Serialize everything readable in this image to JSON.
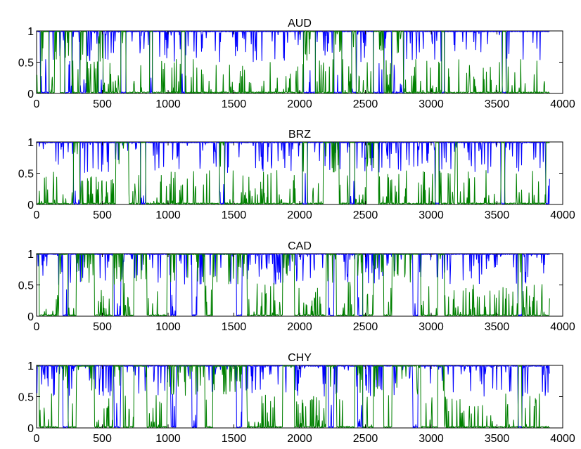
{
  "chart_data": [
    {
      "type": "line",
      "title": "AUD",
      "xlabel": "",
      "ylabel": "",
      "xlim": [
        0,
        4000
      ],
      "ylim": [
        0,
        1
      ],
      "grid": false,
      "xticks": [
        "0",
        "500",
        "1000",
        "1500",
        "2000",
        "2500",
        "3000",
        "3500",
        "4000"
      ],
      "yticks": [
        "0",
        "0.5",
        "1"
      ],
      "x_end": 3900,
      "series": [
        {
          "color": "#0000ff",
          "low": [
            [
              30,
              95
            ],
            [
              215,
              270
            ],
            [
              330,
              380
            ],
            [
              470,
              505
            ],
            [
              640,
              680
            ],
            [
              860,
              880
            ],
            [
              1100,
              1130
            ],
            [
              2030,
              2120
            ],
            [
              2260,
              2320
            ],
            [
              2395,
              2430
            ],
            [
              2560,
              2640
            ],
            [
              2700,
              2790
            ],
            [
              3080,
              3100
            ],
            [
              3540,
              3570
            ]
          ]
        },
        {
          "color": "#008000",
          "low": [
            [
              0,
              30
            ],
            [
              95,
              135
            ],
            [
              180,
              215
            ],
            [
              270,
              330
            ],
            [
              380,
              470
            ],
            [
              505,
              640
            ],
            [
              680,
              860
            ],
            [
              880,
              1100
            ],
            [
              1130,
              1290
            ],
            [
              1290,
              2030
            ],
            [
              2120,
              2260
            ],
            [
              2320,
              2395
            ],
            [
              2430,
              2560
            ],
            [
              2640,
              2700
            ],
            [
              2790,
              3080
            ],
            [
              3100,
              3540
            ],
            [
              3570,
              3900
            ]
          ]
        }
      ]
    },
    {
      "type": "line",
      "title": "BRZ",
      "xlabel": "",
      "ylabel": "",
      "xlim": [
        0,
        4000
      ],
      "ylim": [
        0,
        1
      ],
      "grid": false,
      "xticks": [
        "0",
        "500",
        "1000",
        "1500",
        "2000",
        "2500",
        "3000",
        "3500",
        "4000"
      ],
      "yticks": [
        "0",
        "0.5",
        "1"
      ],
      "x_end": 3900,
      "series": [
        {
          "color": "#0000ff",
          "low": [
            [
              280,
              330
            ],
            [
              790,
              830
            ],
            [
              1390,
              1430
            ],
            [
              2020,
              2060
            ],
            [
              2380,
              2420
            ],
            [
              3030,
              3060
            ],
            [
              3530,
              3560
            ],
            [
              3870,
              3900
            ]
          ]
        },
        {
          "color": "#008000",
          "low": [
            [
              0,
              280
            ],
            [
              330,
              600
            ],
            [
              700,
              790
            ],
            [
              830,
              1140
            ],
            [
              1140,
              1390
            ],
            [
              1430,
              1560
            ],
            [
              1560,
              2020
            ],
            [
              2060,
              2180
            ],
            [
              2300,
              2380
            ],
            [
              2420,
              2510
            ],
            [
              2600,
              3030
            ],
            [
              3060,
              3180
            ],
            [
              3200,
              3530
            ],
            [
              3560,
              3870
            ]
          ]
        }
      ]
    },
    {
      "type": "line",
      "title": "CAD",
      "xlabel": "",
      "ylabel": "",
      "xlim": [
        0,
        4000
      ],
      "ylim": [
        0,
        1
      ],
      "grid": false,
      "xticks": [
        "0",
        "500",
        "1000",
        "1500",
        "2000",
        "2500",
        "3000",
        "3500",
        "4000"
      ],
      "yticks": [
        "0",
        "0.5",
        "1"
      ],
      "x_end": 3900,
      "series": [
        {
          "color": "#0000ff",
          "low": [
            [
              200,
              240
            ],
            [
              590,
              640
            ],
            [
              1020,
              1060
            ],
            [
              1180,
              1220
            ],
            [
              1520,
              1560
            ],
            [
              2220,
              2260
            ],
            [
              2440,
              2480
            ],
            [
              2860,
              2900
            ],
            [
              3660,
              3690
            ]
          ]
        },
        {
          "color": "#008000",
          "low": [
            [
              20,
              170
            ],
            [
              240,
              300
            ],
            [
              440,
              580
            ],
            [
              660,
              740
            ],
            [
              840,
              990
            ],
            [
              1280,
              1340
            ],
            [
              1600,
              1870
            ],
            [
              1960,
              2200
            ],
            [
              2280,
              2420
            ],
            [
              2480,
              2560
            ],
            [
              2640,
              2700
            ],
            [
              2920,
              3050
            ],
            [
              3100,
              3660
            ],
            [
              3690,
              3900
            ]
          ]
        }
      ]
    },
    {
      "type": "line",
      "title": "CHY",
      "xlabel": "",
      "ylabel": "",
      "xlim": [
        0,
        4000
      ],
      "ylim": [
        0,
        1
      ],
      "grid": false,
      "xticks": [
        "0",
        "500",
        "1000",
        "1500",
        "2000",
        "2500",
        "3000",
        "3500",
        "4000"
      ],
      "yticks": [
        "0",
        "0.5",
        "1"
      ],
      "x_end": 3900,
      "series": [
        {
          "color": "#0000ff",
          "low": [
            [
              200,
              240
            ],
            [
              590,
              640
            ],
            [
              1020,
              1060
            ],
            [
              1180,
              1220
            ],
            [
              1520,
              1560
            ],
            [
              2220,
              2260
            ],
            [
              2440,
              2480
            ],
            [
              2860,
              2900
            ],
            [
              3660,
              3690
            ]
          ]
        },
        {
          "color": "#008000",
          "low": [
            [
              20,
              170
            ],
            [
              240,
              300
            ],
            [
              440,
              580
            ],
            [
              660,
              740
            ],
            [
              840,
              990
            ],
            [
              1280,
              1340
            ],
            [
              1600,
              1870
            ],
            [
              1960,
              2200
            ],
            [
              2280,
              2420
            ],
            [
              2480,
              2560
            ],
            [
              2640,
              2700
            ],
            [
              2920,
              3050
            ],
            [
              3100,
              3660
            ],
            [
              3690,
              3900
            ]
          ]
        }
      ]
    }
  ]
}
